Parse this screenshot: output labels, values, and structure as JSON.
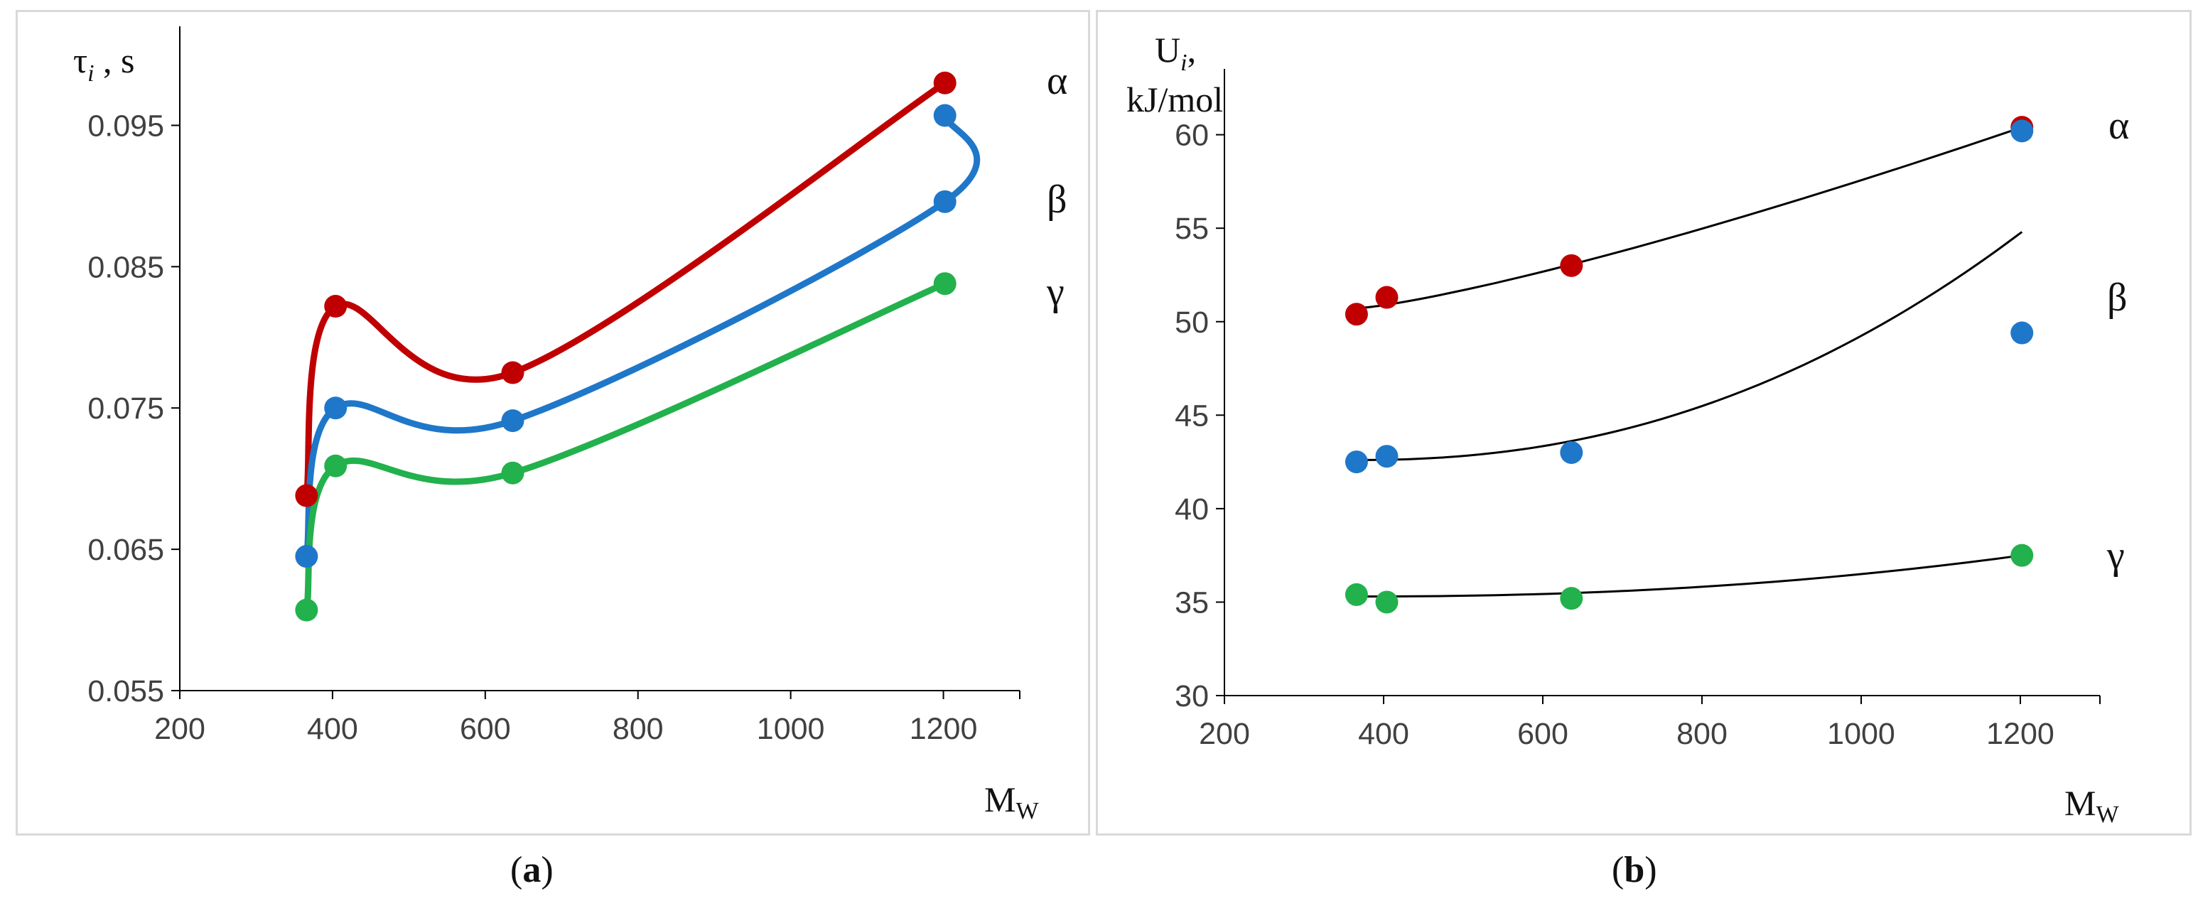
{
  "chart_data": [
    {
      "panel": "a",
      "type": "line",
      "ylabel_main": "τ",
      "ylabel_sub": "i",
      "ylabel_unit": " , s",
      "xlabel_main": "M",
      "xlabel_sub": "W",
      "xlim": [
        200,
        1300
      ],
      "ylim": [
        0.055,
        0.1
      ],
      "xticks": [
        200,
        400,
        600,
        800,
        1000,
        1200
      ],
      "xtick_labels": [
        "200",
        "400",
        "600",
        "800",
        "1000",
        "1200"
      ],
      "yticks": [
        0.055,
        0.065,
        0.075,
        0.085,
        0.095
      ],
      "ytick_labels": [
        "0.055",
        "0.065",
        "0.075",
        "0.085",
        "0.095"
      ],
      "series": [
        {
          "name": "α",
          "color": "#c00000",
          "x": [
            366,
            404,
            636,
            1202
          ],
          "y": [
            0.0688,
            0.0822,
            0.0775,
            0.098
          ]
        },
        {
          "name": "β",
          "color": "#1f77c9",
          "x": [
            366,
            404,
            636,
            1202,
            1202
          ],
          "y": [
            0.0645,
            0.075,
            0.0741,
            0.0896,
            0.0957
          ]
        },
        {
          "name": "γ",
          "color": "#22b14c",
          "x": [
            366,
            404,
            636,
            1202
          ],
          "y": [
            0.0607,
            0.0709,
            0.0704,
            0.0838
          ]
        }
      ]
    },
    {
      "panel": "b",
      "type": "scatter",
      "ylabel_main": "U",
      "ylabel_sub": "i",
      "ylabel_comma": ",",
      "ylabel_unit": "kJ/mol",
      "xlabel_main": "M",
      "xlabel_sub": "W",
      "xlim": [
        200,
        1300
      ],
      "ylim": [
        30,
        62
      ],
      "xticks": [
        200,
        400,
        600,
        800,
        1000,
        1200
      ],
      "xtick_labels": [
        "200",
        "400",
        "600",
        "800",
        "1000",
        "1200"
      ],
      "yticks": [
        30,
        35,
        40,
        45,
        50,
        55,
        60
      ],
      "ytick_labels": [
        "30",
        "35",
        "40",
        "45",
        "50",
        "55",
        "60"
      ],
      "series": [
        {
          "name": "α",
          "color": "#c00000",
          "x": [
            366,
            404,
            636,
            1202
          ],
          "y": [
            50.4,
            51.3,
            53.0,
            60.4
          ],
          "trend_x": [
            366,
            1202
          ],
          "trend_y": [
            50.7,
            60.4
          ]
        },
        {
          "name": "β",
          "color": "#1f77c9",
          "x": [
            366,
            404,
            636,
            1202,
            1202
          ],
          "y": [
            42.5,
            42.8,
            43.0,
            49.4,
            60.2
          ],
          "trend_x": [
            366,
            1202
          ],
          "trend_y": [
            42.6,
            54.8
          ]
        },
        {
          "name": "γ",
          "color": "#22b14c",
          "x": [
            366,
            404,
            636,
            1202
          ],
          "y": [
            35.4,
            35.0,
            35.2,
            37.5
          ],
          "trend_x": [
            366,
            1202
          ],
          "trend_y": [
            35.3,
            37.5
          ]
        }
      ]
    }
  ],
  "captions": {
    "a": {
      "open": "(",
      "letter": "a",
      "close": ")"
    },
    "b": {
      "open": "(",
      "letter": "b",
      "close": ")"
    }
  }
}
